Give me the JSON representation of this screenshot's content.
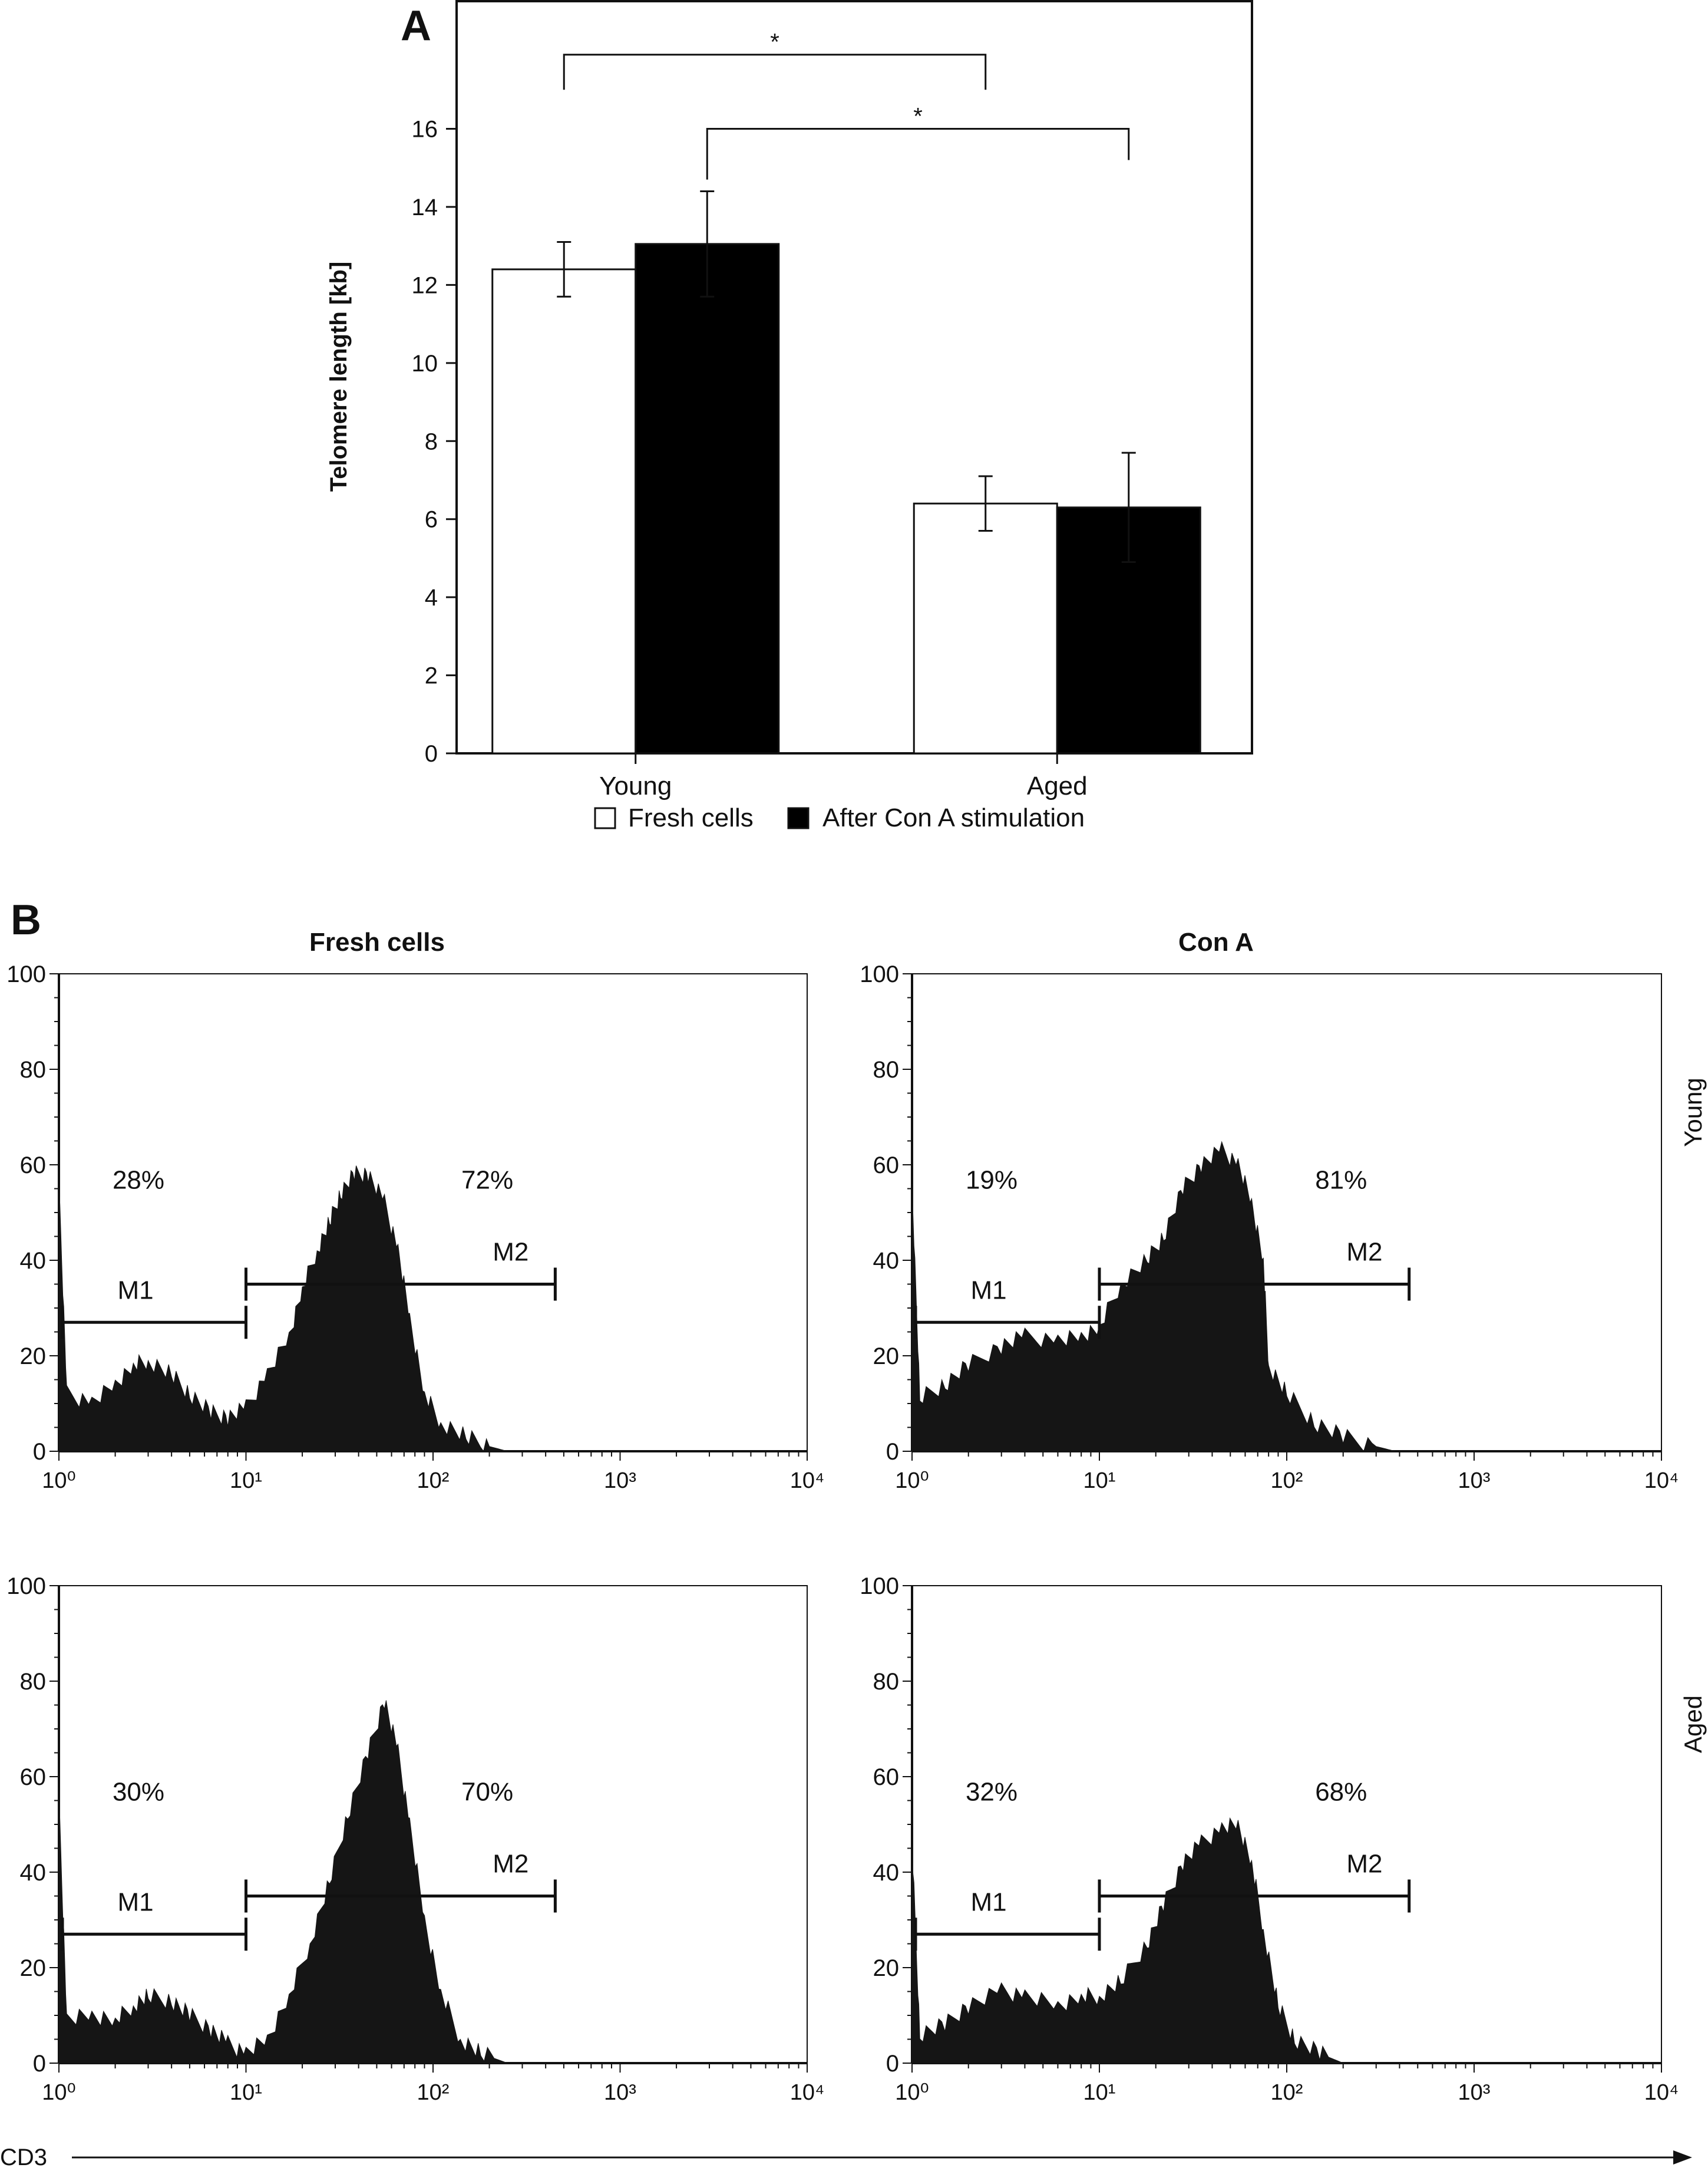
{
  "panel_a_letter": "A",
  "panel_b_letter": "B",
  "colors": {
    "fresh": "#ffffff",
    "conA": "#000000",
    "ink": "#111111",
    "histogram": "#151515"
  },
  "chart_data": [
    {
      "type": "bar",
      "panel": "A",
      "categories": [
        "Young",
        "Aged"
      ],
      "series": [
        {
          "name": "Fresh cells",
          "values": [
            12.4,
            6.4
          ],
          "errors": [
            0.7,
            0.7
          ]
        },
        {
          "name": "After Con A stimulation",
          "values": [
            13.05,
            6.3
          ],
          "errors": [
            1.35,
            1.4
          ]
        }
      ],
      "ylabel": "Telomere length [kb]",
      "ylim": [
        0,
        19.3
      ],
      "yticks": [
        0,
        2,
        4,
        6,
        8,
        10,
        12,
        14,
        16
      ],
      "legend_position": "bottom-center",
      "significance": [
        {
          "label": "*",
          "from": "Young / Fresh cells",
          "to": "Aged / Fresh cells",
          "level": 17.9
        },
        {
          "label": "*",
          "from": "Young / After Con A stimulation",
          "to": "Aged / After Con A stimulation",
          "level": 16.0
        }
      ]
    },
    {
      "type": "area",
      "panel": "B",
      "xlabel": "CD3",
      "x_scale": "log",
      "xlim": [
        1,
        10000
      ],
      "xticks": [
        "10⁰",
        "10¹",
        "10²",
        "10³",
        "10⁴"
      ],
      "ylim": [
        0,
        100
      ],
      "yticks": [
        0,
        20,
        40,
        60,
        80,
        100
      ],
      "column_titles": [
        "Fresh cells",
        "Con A"
      ],
      "row_labels": [
        "Young",
        "Aged"
      ],
      "histograms": [
        {
          "condition": "Fresh cells",
          "group": "Young",
          "markers": [
            {
              "label": "M1",
              "percent": "28%",
              "x": [
                1,
                10
              ],
              "level": 27
            },
            {
              "label": "M2",
              "percent": "72%",
              "x": [
                10,
                450
              ],
              "level": 35
            }
          ],
          "density": [
            [
              1,
              56
            ],
            [
              1.1,
              12
            ],
            [
              1.5,
              10
            ],
            [
              2,
              14
            ],
            [
              2.5,
              18
            ],
            [
              3,
              19
            ],
            [
              4,
              16
            ],
            [
              5,
              12
            ],
            [
              6.5,
              8
            ],
            [
              8,
              7
            ],
            [
              10,
              9
            ],
            [
              13,
              16
            ],
            [
              17,
              24
            ],
            [
              20,
              34
            ],
            [
              24,
              42
            ],
            [
              28,
              48
            ],
            [
              32,
              54
            ],
            [
              38,
              58
            ],
            [
              45,
              58
            ],
            [
              55,
              52
            ],
            [
              65,
              42
            ],
            [
              75,
              28
            ],
            [
              90,
              12
            ],
            [
              110,
              6
            ],
            [
              150,
              3
            ],
            [
              200,
              1
            ],
            [
              250,
              0
            ]
          ]
        },
        {
          "condition": "Con A",
          "group": "Young",
          "markers": [
            {
              "label": "M1",
              "percent": "19%",
              "x": [
                1,
                10
              ],
              "level": 27
            },
            {
              "label": "M2",
              "percent": "81%",
              "x": [
                10,
                450
              ],
              "level": 35
            }
          ],
          "density": [
            [
              1,
              56
            ],
            [
              1.1,
              11
            ],
            [
              1.5,
              14
            ],
            [
              2,
              18
            ],
            [
              3,
              22
            ],
            [
              4,
              24
            ],
            [
              6,
              23
            ],
            [
              8,
              24
            ],
            [
              10,
              26
            ],
            [
              13,
              35
            ],
            [
              18,
              40
            ],
            [
              22,
              45
            ],
            [
              28,
              55
            ],
            [
              35,
              60
            ],
            [
              45,
              63
            ],
            [
              55,
              60
            ],
            [
              65,
              52
            ],
            [
              75,
              40
            ],
            [
              80,
              18
            ],
            [
              100,
              12
            ],
            [
              140,
              6
            ],
            [
              200,
              3
            ],
            [
              300,
              1
            ],
            [
              380,
              0
            ]
          ]
        },
        {
          "condition": "Fresh cells",
          "group": "Aged",
          "markers": [
            {
              "label": "M1",
              "percent": "30%",
              "x": [
                1,
                10
              ],
              "level": 27
            },
            {
              "label": "M2",
              "percent": "70%",
              "x": [
                10,
                450
              ],
              "level": 35
            }
          ],
          "density": [
            [
              1,
              56
            ],
            [
              1.1,
              9
            ],
            [
              1.5,
              10
            ],
            [
              2,
              9
            ],
            [
              2.5,
              12
            ],
            [
              3,
              14
            ],
            [
              4,
              13
            ],
            [
              5,
              10
            ],
            [
              6.5,
              7
            ],
            [
              8,
              4
            ],
            [
              10,
              2
            ],
            [
              13,
              5
            ],
            [
              17,
              14
            ],
            [
              22,
              25
            ],
            [
              28,
              38
            ],
            [
              35,
              52
            ],
            [
              45,
              65
            ],
            [
              55,
              76
            ],
            [
              65,
              65
            ],
            [
              75,
              50
            ],
            [
              90,
              30
            ],
            [
              110,
              15
            ],
            [
              140,
              5
            ],
            [
              180,
              2
            ],
            [
              250,
              0
            ]
          ]
        },
        {
          "condition": "Con A",
          "group": "Aged",
          "markers": [
            {
              "label": "M1",
              "percent": "32%",
              "x": [
                1,
                10
              ],
              "level": 27
            },
            {
              "label": "M2",
              "percent": "68%",
              "x": [
                10,
                450
              ],
              "level": 35
            }
          ],
          "density": [
            [
              1,
              46
            ],
            [
              1.1,
              6
            ],
            [
              1.5,
              8
            ],
            [
              2,
              12
            ],
            [
              3,
              15
            ],
            [
              4,
              14
            ],
            [
              6,
              12
            ],
            [
              8,
              14
            ],
            [
              10,
              14
            ],
            [
              13,
              17
            ],
            [
              18,
              25
            ],
            [
              22,
              33
            ],
            [
              28,
              42
            ],
            [
              35,
              46
            ],
            [
              45,
              49
            ],
            [
              55,
              50
            ],
            [
              65,
              42
            ],
            [
              75,
              28
            ],
            [
              90,
              12
            ],
            [
              110,
              5
            ],
            [
              150,
              2
            ],
            [
              200,
              0
            ]
          ]
        }
      ]
    }
  ]
}
